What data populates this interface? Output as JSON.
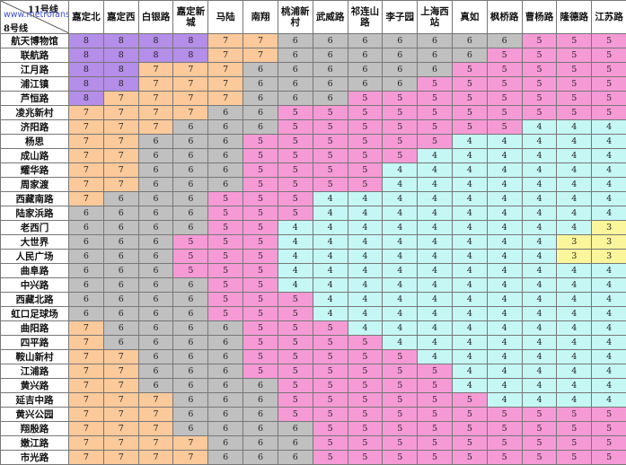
{
  "corner": {
    "line11_label": "11号线",
    "line8_label": "8号线",
    "watermark": "www.metrofans.sh.cn"
  },
  "columns": [
    "嘉定北",
    "嘉定西",
    "白银路",
    "嘉定新城",
    "马陆",
    "南翔",
    "桃浦新村",
    "武威路",
    "祁连山路",
    "李子园",
    "上海西站",
    "真如",
    "枫桥路",
    "曹杨路",
    "隆德路",
    "江苏路"
  ],
  "rows": [
    {
      "station": "航天博物馆",
      "fares": [
        8,
        8,
        8,
        8,
        7,
        7,
        6,
        6,
        6,
        6,
        6,
        6,
        6,
        5,
        5,
        5
      ]
    },
    {
      "station": "联航路",
      "fares": [
        8,
        8,
        8,
        8,
        7,
        7,
        6,
        6,
        6,
        6,
        6,
        6,
        5,
        5,
        5,
        5
      ]
    },
    {
      "station": "江月路",
      "fares": [
        8,
        8,
        7,
        7,
        7,
        6,
        6,
        6,
        6,
        6,
        6,
        5,
        5,
        5,
        5,
        5
      ]
    },
    {
      "station": "浦江镇",
      "fares": [
        8,
        8,
        7,
        7,
        7,
        6,
        6,
        6,
        6,
        6,
        5,
        5,
        5,
        5,
        5,
        5
      ]
    },
    {
      "station": "芦恒路",
      "fares": [
        8,
        7,
        7,
        7,
        7,
        6,
        6,
        6,
        5,
        5,
        5,
        5,
        5,
        5,
        5,
        5
      ]
    },
    {
      "station": "凌兆新村",
      "fares": [
        7,
        7,
        7,
        7,
        6,
        6,
        5,
        5,
        5,
        5,
        5,
        5,
        5,
        5,
        5,
        5
      ]
    },
    {
      "station": "济阳路",
      "fares": [
        7,
        7,
        7,
        6,
        6,
        6,
        5,
        5,
        5,
        5,
        5,
        5,
        5,
        4,
        4,
        4
      ]
    },
    {
      "station": "杨思",
      "fares": [
        7,
        7,
        6,
        6,
        6,
        5,
        5,
        5,
        5,
        5,
        5,
        4,
        4,
        4,
        4,
        4
      ]
    },
    {
      "station": "成山路",
      "fares": [
        7,
        7,
        6,
        6,
        6,
        5,
        5,
        5,
        5,
        5,
        4,
        4,
        4,
        4,
        4,
        4
      ]
    },
    {
      "station": "耀华路",
      "fares": [
        7,
        7,
        6,
        6,
        6,
        5,
        5,
        5,
        5,
        4,
        4,
        4,
        4,
        4,
        4,
        4
      ]
    },
    {
      "station": "周家渡",
      "fares": [
        7,
        7,
        6,
        6,
        6,
        5,
        5,
        5,
        5,
        4,
        4,
        4,
        4,
        4,
        4,
        4
      ]
    },
    {
      "station": "西藏南路",
      "fares": [
        7,
        6,
        6,
        6,
        5,
        5,
        5,
        4,
        4,
        4,
        4,
        4,
        4,
        4,
        4,
        4
      ]
    },
    {
      "station": "陆家浜路",
      "fares": [
        6,
        6,
        6,
        6,
        5,
        5,
        5,
        4,
        4,
        4,
        4,
        4,
        4,
        4,
        4,
        4
      ]
    },
    {
      "station": "老西门",
      "fares": [
        6,
        6,
        6,
        6,
        5,
        5,
        4,
        4,
        4,
        4,
        4,
        4,
        4,
        4,
        4,
        3
      ]
    },
    {
      "station": "大世界",
      "fares": [
        6,
        6,
        6,
        5,
        5,
        5,
        4,
        4,
        4,
        4,
        4,
        4,
        4,
        4,
        3,
        3
      ]
    },
    {
      "station": "人民广场",
      "fares": [
        6,
        6,
        6,
        5,
        5,
        5,
        4,
        4,
        4,
        4,
        4,
        4,
        4,
        4,
        3,
        3
      ]
    },
    {
      "station": "曲阜路",
      "fares": [
        6,
        6,
        6,
        5,
        5,
        5,
        4,
        4,
        4,
        4,
        4,
        4,
        4,
        4,
        4,
        4
      ]
    },
    {
      "station": "中兴路",
      "fares": [
        6,
        6,
        6,
        6,
        5,
        5,
        4,
        4,
        4,
        4,
        4,
        4,
        4,
        4,
        4,
        4
      ]
    },
    {
      "station": "西藏北路",
      "fares": [
        6,
        6,
        6,
        6,
        5,
        5,
        5,
        4,
        4,
        4,
        4,
        4,
        4,
        4,
        4,
        4
      ]
    },
    {
      "station": "虹口足球场",
      "fares": [
        6,
        6,
        6,
        6,
        5,
        5,
        5,
        4,
        4,
        4,
        4,
        4,
        4,
        4,
        4,
        4
      ]
    },
    {
      "station": "曲阳路",
      "fares": [
        7,
        6,
        6,
        6,
        6,
        5,
        5,
        5,
        4,
        4,
        4,
        4,
        4,
        4,
        4,
        4
      ]
    },
    {
      "station": "四平路",
      "fares": [
        7,
        6,
        6,
        6,
        6,
        5,
        5,
        5,
        5,
        4,
        4,
        4,
        4,
        4,
        4,
        4
      ]
    },
    {
      "station": "鞍山新村",
      "fares": [
        7,
        7,
        6,
        6,
        6,
        5,
        5,
        5,
        5,
        5,
        4,
        4,
        4,
        4,
        4,
        4
      ]
    },
    {
      "station": "江浦路",
      "fares": [
        7,
        7,
        6,
        6,
        6,
        5,
        5,
        5,
        5,
        5,
        5,
        4,
        4,
        4,
        4,
        4
      ]
    },
    {
      "station": "黄兴路",
      "fares": [
        7,
        7,
        6,
        6,
        6,
        6,
        5,
        5,
        5,
        5,
        5,
        4,
        4,
        4,
        4,
        4
      ]
    },
    {
      "station": "延吉中路",
      "fares": [
        7,
        7,
        7,
        6,
        6,
        6,
        5,
        5,
        5,
        5,
        5,
        5,
        4,
        4,
        4,
        4
      ]
    },
    {
      "station": "黄兴公园",
      "fares": [
        7,
        7,
        7,
        6,
        6,
        6,
        5,
        5,
        5,
        5,
        5,
        5,
        5,
        5,
        5,
        5
      ]
    },
    {
      "station": "翔殷路",
      "fares": [
        7,
        7,
        7,
        6,
        6,
        6,
        6,
        5,
        5,
        5,
        5,
        5,
        5,
        5,
        5,
        5
      ]
    },
    {
      "station": "嫩江路",
      "fares": [
        7,
        7,
        7,
        7,
        6,
        6,
        6,
        5,
        5,
        5,
        5,
        5,
        5,
        5,
        5,
        5
      ]
    },
    {
      "station": "市光路",
      "fares": [
        7,
        7,
        7,
        7,
        6,
        6,
        6,
        5,
        5,
        5,
        5,
        5,
        5,
        5,
        5,
        5
      ]
    }
  ]
}
